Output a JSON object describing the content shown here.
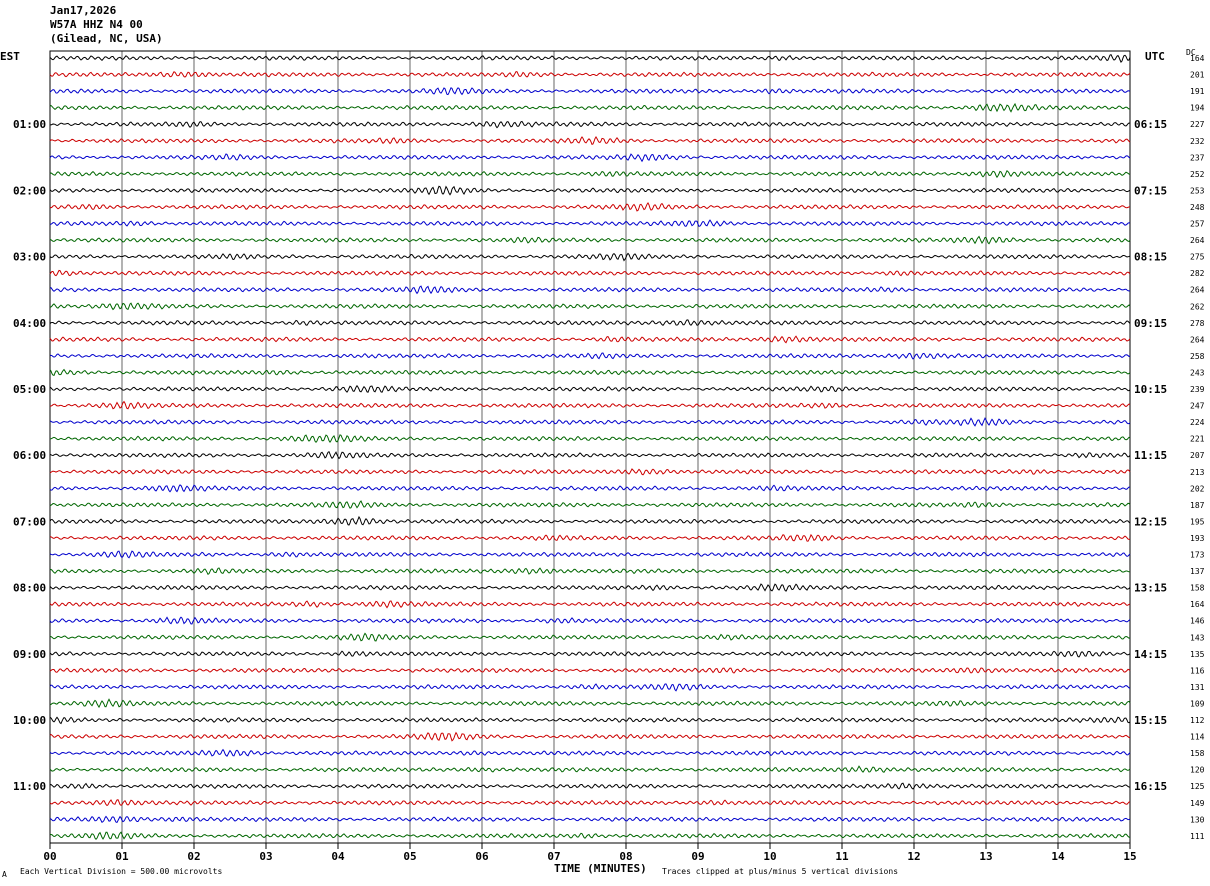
{
  "header": {
    "date": "Jan17,2026",
    "station": "W57A HHZ N4 00",
    "location": "(Gilead, NC, USA)"
  },
  "left_tz": "EST",
  "right_tz": "UTC",
  "dc_label": "DC",
  "footer": {
    "left_mark": "A",
    "scale_note": "Each Vertical Division =  500.00 microvolts",
    "axis_title": "TIME (MINUTES)",
    "clip_note": "Traces clipped at plus/minus 5 vertical divisions"
  },
  "colors": {
    "traces": [
      "#000000",
      "#cc0000",
      "#0000cc",
      "#006600"
    ],
    "grid": "#000000"
  },
  "chart_data": {
    "type": "line",
    "title": "",
    "xlabel": "TIME (MINUTES)",
    "xlim": [
      0,
      15
    ],
    "x_ticks": [
      "00",
      "01",
      "02",
      "03",
      "04",
      "05",
      "06",
      "07",
      "08",
      "09",
      "10",
      "11",
      "12",
      "13",
      "14",
      "15"
    ],
    "traces_per_hour": 4,
    "trace_count": 48,
    "est_hour_labels": [
      "01:00",
      "02:00",
      "03:00",
      "04:00",
      "05:00",
      "06:00",
      "07:00",
      "08:00",
      "09:00",
      "10:00",
      "11:00"
    ],
    "utc_hour_labels": [
      "06:15",
      "07:15",
      "08:15",
      "09:15",
      "10:15",
      "11:15",
      "12:15",
      "13:15",
      "14:15",
      "15:15",
      "16:15"
    ],
    "dc_offsets": [
      164,
      201,
      191,
      194,
      227,
      232,
      237,
      252,
      253,
      248,
      257,
      264,
      275,
      282,
      264,
      262,
      278,
      264,
      258,
      243,
      239,
      247,
      224,
      221,
      207,
      213,
      202,
      187,
      195,
      193,
      173,
      137,
      158,
      164,
      146,
      143,
      135,
      116,
      131,
      109,
      112,
      114,
      158,
      120,
      125,
      149,
      130,
      111
    ],
    "grid": true
  }
}
